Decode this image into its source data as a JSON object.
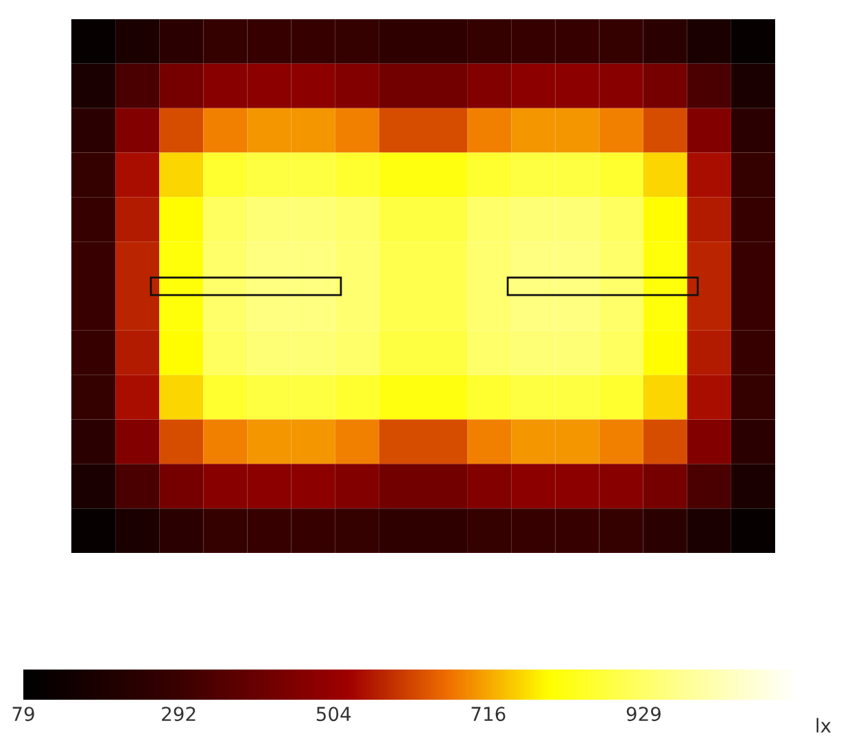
{
  "chart_data": {
    "type": "heatmap",
    "categories": [
      null,
      null,
      null,
      null,
      null,
      null,
      null,
      null,
      null,
      null,
      null,
      null,
      null,
      null,
      null,
      null
    ],
    "y_categories": [
      null,
      null,
      null,
      null,
      null,
      null,
      null,
      null,
      null,
      null,
      null,
      null
    ],
    "cells": [
      [
        100,
        180,
        240,
        270,
        280,
        280,
        270,
        250,
        250,
        270,
        280,
        280,
        270,
        240,
        180,
        100
      ],
      [
        180,
        330,
        430,
        470,
        480,
        480,
        460,
        420,
        420,
        460,
        480,
        480,
        470,
        430,
        330,
        180
      ],
      [
        240,
        460,
        620,
        680,
        700,
        700,
        680,
        620,
        620,
        680,
        700,
        700,
        680,
        620,
        460,
        240
      ],
      [
        270,
        540,
        760,
        860,
        880,
        880,
        860,
        820,
        820,
        860,
        880,
        880,
        860,
        760,
        540,
        270
      ],
      [
        280,
        560,
        800,
        920,
        950,
        950,
        930,
        880,
        880,
        930,
        950,
        950,
        920,
        800,
        560,
        280
      ],
      [
        290,
        570,
        810,
        930,
        960,
        960,
        940,
        900,
        900,
        940,
        960,
        960,
        930,
        810,
        570,
        290
      ],
      [
        290,
        570,
        810,
        930,
        960,
        960,
        940,
        900,
        900,
        940,
        960,
        960,
        930,
        810,
        570,
        290
      ],
      [
        280,
        560,
        800,
        920,
        950,
        950,
        930,
        880,
        880,
        930,
        950,
        950,
        920,
        800,
        560,
        280
      ],
      [
        270,
        540,
        760,
        860,
        880,
        880,
        860,
        820,
        820,
        860,
        880,
        880,
        860,
        760,
        540,
        270
      ],
      [
        240,
        460,
        620,
        680,
        700,
        700,
        680,
        620,
        620,
        680,
        700,
        700,
        680,
        620,
        460,
        240
      ],
      [
        180,
        330,
        430,
        470,
        480,
        480,
        460,
        420,
        420,
        460,
        480,
        480,
        470,
        430,
        330,
        180
      ],
      [
        100,
        180,
        240,
        270,
        280,
        280,
        270,
        250,
        250,
        270,
        280,
        280,
        270,
        240,
        180,
        100
      ]
    ],
    "clim": [
      79,
      1141
    ],
    "cticks": [
      79,
      292,
      504,
      716,
      929
    ],
    "clabel": "lx"
  }
}
